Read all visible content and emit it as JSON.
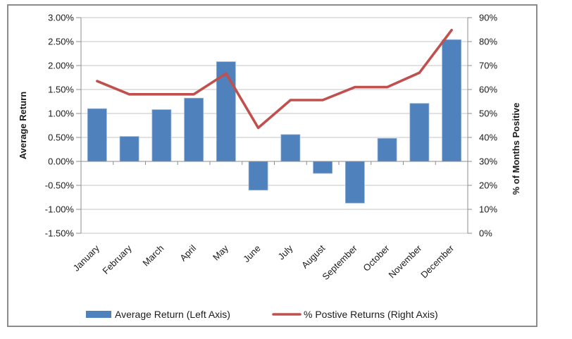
{
  "chart_data": {
    "type": "bar",
    "subtype": "bar-line-combo",
    "categories": [
      "January",
      "February",
      "March",
      "April",
      "May",
      "June",
      "July",
      "August",
      "September",
      "October",
      "November",
      "December"
    ],
    "series": [
      {
        "name": "Average Return (Left Axis)",
        "type": "bar",
        "axis": "left",
        "color": "#4F81BD",
        "values": [
          1.1,
          0.52,
          1.08,
          1.32,
          2.08,
          -0.6,
          0.56,
          -0.25,
          -0.87,
          0.48,
          1.21,
          2.54
        ]
      },
      {
        "name": "% Postive Returns (Right Axis)",
        "type": "line",
        "axis": "right",
        "color": "#C0504D",
        "values": [
          63.5,
          58.0,
          58.0,
          58.0,
          66.7,
          44.0,
          55.6,
          55.6,
          61.0,
          61.0,
          67.0,
          84.8
        ]
      }
    ],
    "title": "",
    "xlabel": "",
    "left_axis": {
      "title": "Average Return",
      "min": -1.5,
      "max": 3.0,
      "step": 0.5,
      "format": "percent2"
    },
    "right_axis": {
      "title": "% of Months Positive",
      "min": 0,
      "max": 90,
      "step": 10,
      "format": "percent0"
    },
    "grid": true,
    "legend_position": "bottom"
  },
  "legend": {
    "bar_label": "Average Return (Left Axis)",
    "line_label": "% Postive Returns (Right Axis)"
  },
  "titles": {
    "left_axis": "Average Return",
    "right_axis": "% of Months Positive"
  },
  "colors": {
    "bar_fill": "#4F81BD",
    "bar_edge": "#95B3D7",
    "line_stroke": "#C0504D",
    "gridline": "#C6C6C6",
    "axis_line": "#8E8E8E",
    "frame_border": "#8C8C8C",
    "text": "#1a1a1a"
  }
}
